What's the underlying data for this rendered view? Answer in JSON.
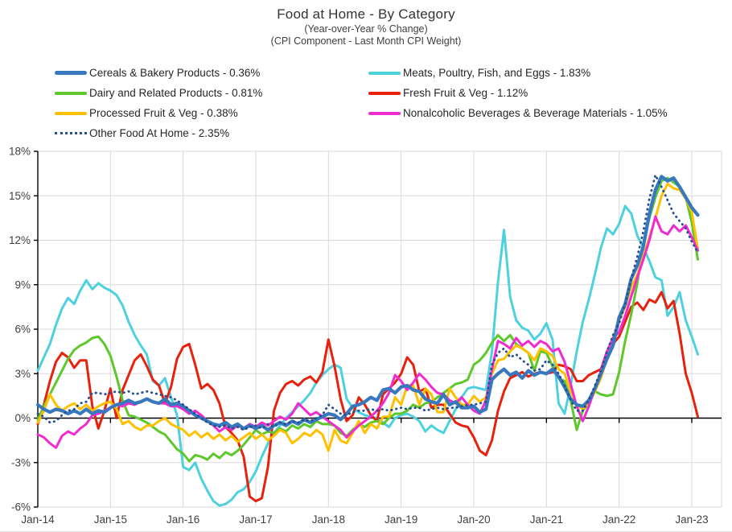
{
  "header": {
    "title": "Food at Home - By Category",
    "subtitle1": "(Year-over-Year % Change)",
    "subtitle2": "(CPI Component - Last Month CPI Weight)"
  },
  "colors": {
    "cereals": "#3778BE",
    "meats": "#4DD1DE",
    "dairy": "#5EC72B",
    "fresh_fruit_veg": "#E8210D",
    "processed_fruit_veg": "#FFC000",
    "nonalcoholic_beverages": "#F02BCF",
    "other_food_at_home": "#264F8F",
    "gridline": "#D9D9D9",
    "axis": "#000000",
    "tick_text": "#404040"
  },
  "legend": {
    "items": [
      {
        "series": "cereals",
        "column": 0,
        "label": "Cereals & Bakery Products - 0.36%"
      },
      {
        "series": "meats",
        "column": 1,
        "label": "Meats, Poultry, Fish, and Eggs - 1.83%"
      },
      {
        "series": "dairy",
        "column": 0,
        "label": "Dairy and Related Products - 0.81%"
      },
      {
        "series": "fresh_fruit_veg",
        "column": 1,
        "label": "Fresh Fruit & Veg - 1.12%"
      },
      {
        "series": "processed_fruit_veg",
        "column": 0,
        "label": "Processed Fruit & Veg - 0.38%"
      },
      {
        "series": "nonalcoholic_beverages",
        "column": 1,
        "label": "Nonalcoholic Beverages & Beverage Materials - 1.05%"
      },
      {
        "series": "other_food_at_home",
        "column": 0,
        "label": "Other Food At Home - 2.35%"
      }
    ]
  },
  "chart_data": {
    "type": "line",
    "title": "Food at Home - By Category",
    "x_start": "Jan-2014",
    "x_frequency": "monthly",
    "n_points": 110,
    "x_tick_labels": [
      "Jan-14",
      "Jan-15",
      "Jan-16",
      "Jan-17",
      "Jan-18",
      "Jan-19",
      "Jan-20",
      "Jan-21",
      "Jan-22",
      "Jan-23"
    ],
    "x_tick_month_index": [
      0,
      12,
      24,
      36,
      48,
      60,
      72,
      84,
      96,
      108
    ],
    "ylim": [
      -6,
      18
    ],
    "y_tick_values": [
      18,
      15,
      12,
      9,
      6,
      3,
      0,
      -3,
      -6
    ],
    "y_tick_labels": [
      "18%",
      "15%",
      "12%",
      "9%",
      "6%",
      "3%",
      "0%",
      "-3%",
      "-6%"
    ],
    "grid": true,
    "legend_position": "top-left",
    "series": [
      {
        "id": "meats",
        "name": "Meats, Poultry, Fish, and Eggs - 1.83%",
        "color": "#4DD1DE",
        "stroke_width": 3,
        "dash": "solid",
        "values": [
          3.2,
          4.1,
          5.0,
          6.3,
          7.4,
          8.1,
          7.7,
          8.6,
          9.3,
          8.7,
          9.1,
          8.8,
          8.6,
          8.3,
          7.6,
          6.5,
          5.6,
          4.9,
          4.3,
          2.5,
          2.2,
          2.7,
          1.4,
          0.2,
          -3.3,
          -3.5,
          -3.0,
          -4.1,
          -4.9,
          -5.6,
          -5.9,
          -5.8,
          -5.5,
          -5.0,
          -4.8,
          -4.3,
          -3.6,
          -2.6,
          -1.7,
          -1.0,
          -0.5,
          0.0,
          0.4,
          0.8,
          1.2,
          1.7,
          2.4,
          2.9,
          3.3,
          3.6,
          3.4,
          1.3,
          0.7,
          0.4,
          0.2,
          0.1,
          0.0,
          -0.3,
          -0.6,
          0.0,
          0.2,
          0.3,
          0.1,
          -0.2,
          -0.9,
          -0.5,
          -0.8,
          -1.0,
          -0.2,
          0.6,
          1.4,
          2.0,
          2.1,
          2.0,
          1.9,
          4.5,
          9.2,
          12.7,
          8.2,
          6.6,
          6.1,
          5.9,
          5.3,
          5.7,
          6.4,
          5.3,
          1.0,
          0.3,
          2.2,
          4.5,
          6.5,
          8.0,
          9.7,
          11.5,
          12.8,
          12.4,
          13.1,
          14.3,
          13.8,
          12.3,
          11.5,
          10.6,
          9.5,
          9.3,
          6.9,
          7.5,
          8.5,
          6.6,
          5.5,
          4.3
        ]
      },
      {
        "id": "fresh_fruit_veg",
        "name": "Fresh Fruit & Veg - 1.12%",
        "color": "#E8210D",
        "stroke_width": 3,
        "dash": "solid",
        "values": [
          -0.4,
          0.9,
          2.5,
          3.8,
          4.4,
          4.1,
          3.4,
          3.9,
          3.9,
          0.8,
          -0.7,
          0.5,
          2.0,
          0.0,
          1.9,
          2.9,
          3.9,
          4.3,
          3.5,
          2.6,
          2.2,
          1.0,
          2.1,
          4.0,
          4.8,
          5.0,
          3.6,
          2.0,
          2.3,
          1.9,
          1.0,
          -0.6,
          -1.0,
          -1.5,
          -2.6,
          -5.3,
          -5.6,
          -5.4,
          -3.3,
          0.5,
          1.7,
          2.3,
          2.5,
          2.2,
          2.6,
          2.8,
          2.4,
          3.1,
          5.3,
          3.5,
          1.3,
          -0.2,
          0.2,
          1.4,
          0.9,
          0.2,
          -0.2,
          1.6,
          2.0,
          2.4,
          3.0,
          4.1,
          3.6,
          1.8,
          2.0,
          0.7,
          0.9,
          0.9,
          0.3,
          -0.3,
          -0.5,
          -0.6,
          -1.3,
          -2.2,
          -2.5,
          -1.5,
          0.5,
          1.8,
          2.7,
          2.9,
          3.1,
          2.8,
          3.0,
          3.1,
          3.0,
          3.1,
          3.6,
          3.5,
          3.3,
          2.5,
          2.5,
          2.9,
          3.1,
          3.3,
          4.5,
          5.0,
          5.5,
          6.5,
          7.5,
          7.8,
          7.3,
          8.0,
          7.8,
          8.5,
          7.4,
          7.9,
          5.7,
          3.0,
          1.7,
          0.1
        ]
      },
      {
        "id": "dairy",
        "name": "Dairy and Related Products - 0.81%",
        "color": "#5EC72B",
        "stroke_width": 3,
        "dash": "solid",
        "values": [
          -0.1,
          0.8,
          1.6,
          2.4,
          3.2,
          4.0,
          4.6,
          4.9,
          5.1,
          5.4,
          5.5,
          5.0,
          4.2,
          2.8,
          1.2,
          0.2,
          0.1,
          -0.1,
          -0.3,
          -0.6,
          -0.9,
          -1.1,
          -1.6,
          -2.1,
          -2.4,
          -2.9,
          -2.5,
          -2.6,
          -2.8,
          -2.4,
          -2.7,
          -2.3,
          -2.5,
          -2.2,
          -1.8,
          -1.3,
          -0.8,
          -1.1,
          -0.9,
          -1.0,
          -0.7,
          -0.9,
          -0.5,
          -0.7,
          -0.4,
          -0.6,
          -0.2,
          -0.4,
          -0.4,
          -0.5,
          -1.0,
          -1.2,
          -0.8,
          -0.4,
          -0.6,
          -0.3,
          -0.2,
          -0.4,
          0.0,
          0.3,
          0.3,
          0.5,
          0.9,
          0.7,
          1.0,
          1.1,
          1.4,
          1.7,
          2.0,
          2.3,
          2.4,
          2.6,
          3.6,
          3.9,
          4.4,
          5.1,
          5.6,
          5.2,
          5.6,
          5.0,
          4.7,
          4.4,
          3.2,
          4.5,
          4.4,
          3.5,
          2.7,
          2.5,
          1.2,
          -0.8,
          0.5,
          1.0,
          1.8,
          1.6,
          1.5,
          1.6,
          3.1,
          5.2,
          7.0,
          9.1,
          11.8,
          13.5,
          14.9,
          16.0,
          16.2,
          15.9,
          15.6,
          14.9,
          13.2,
          10.7
        ]
      },
      {
        "id": "processed_fruit_veg",
        "name": "Processed Fruit & Veg - 0.38%",
        "color": "#FFC000",
        "stroke_width": 3,
        "dash": "solid",
        "values": [
          -0.3,
          0.5,
          1.6,
          0.9,
          0.5,
          0.8,
          1.0,
          0.6,
          0.9,
          0.5,
          0.8,
          1.0,
          1.1,
          0.6,
          -0.4,
          -0.2,
          -0.6,
          -0.8,
          -0.5,
          -0.5,
          -0.2,
          0.0,
          -0.4,
          -0.6,
          -0.8,
          -1.2,
          -0.9,
          -1.3,
          -1.0,
          -1.4,
          -1.1,
          -1.5,
          -1.2,
          -1.6,
          -1.3,
          -1.0,
          -1.4,
          -1.1,
          -1.5,
          -1.2,
          -0.8,
          -1.0,
          -1.7,
          -1.4,
          -1.0,
          -1.2,
          -0.8,
          -1.1,
          -2.2,
          -0.8,
          -1.5,
          -1.7,
          -1.0,
          -0.2,
          -1.0,
          -0.4,
          -0.7,
          0.1,
          0.1,
          1.4,
          0.9,
          2.2,
          2.2,
          0.9,
          2.0,
          1.6,
          0.4,
          0.4,
          2.0,
          1.4,
          0.9,
          0.9,
          1.5,
          1.1,
          1.4,
          3.0,
          3.9,
          4.0,
          4.5,
          4.9,
          4.7,
          4.4,
          3.9,
          4.7,
          4.5,
          4.2,
          3.3,
          3.0,
          1.8,
          0.9,
          0.6,
          1.0,
          1.8,
          2.7,
          4.1,
          5.4,
          6.6,
          7.5,
          8.8,
          9.7,
          10.9,
          12.2,
          13.5,
          15.0,
          15.8,
          15.5,
          15.4,
          14.8,
          13.9,
          11.4
        ]
      },
      {
        "id": "nonalcoholic_beverages",
        "name": "Nonalcoholic Beverages & Beverage Materials - 1.05%",
        "color": "#F02BCF",
        "stroke_width": 3,
        "dash": "solid",
        "values": [
          -1.1,
          -1.3,
          -1.7,
          -2.0,
          -1.2,
          -0.9,
          -1.1,
          -0.7,
          -0.4,
          0.2,
          0.3,
          0.5,
          0.7,
          0.9,
          0.8,
          1.0,
          0.9,
          1.1,
          1.3,
          1.1,
          1.0,
          1.0,
          0.8,
          0.8,
          0.6,
          0.3,
          0.5,
          0.2,
          -0.2,
          -0.5,
          -0.9,
          -0.6,
          -0.8,
          -0.5,
          -0.7,
          -0.4,
          -0.6,
          -0.3,
          -0.5,
          -0.2,
          0.1,
          -0.1,
          0.3,
          1.0,
          0.6,
          0.2,
          0.4,
          0.1,
          -0.2,
          -0.5,
          -0.8,
          -1.3,
          -0.9,
          -0.5,
          -0.2,
          0.1,
          0.5,
          1.0,
          1.7,
          2.9,
          2.5,
          1.9,
          2.4,
          3.0,
          2.6,
          2.1,
          1.7,
          1.6,
          1.2,
          1.0,
          1.4,
          0.9,
          0.5,
          0.3,
          1.2,
          3.3,
          5.2,
          5.0,
          4.7,
          5.4,
          4.9,
          5.2,
          4.8,
          5.2,
          5.0,
          4.5,
          4.7,
          3.8,
          2.3,
          0.8,
          -0.2,
          0.8,
          2.0,
          3.2,
          4.5,
          5.4,
          5.8,
          6.9,
          8.2,
          9.5,
          10.7,
          12.0,
          13.6,
          12.6,
          12.4,
          13.0,
          12.6,
          13.0,
          12.2,
          11.3
        ]
      },
      {
        "id": "cereals",
        "name": "Cereals & Bakery Products - 0.36%",
        "color": "#3778BE",
        "stroke_width": 4.2,
        "dash": "solid",
        "values": [
          0.9,
          0.6,
          0.4,
          0.6,
          0.5,
          0.3,
          0.5,
          0.3,
          0.6,
          0.3,
          0.5,
          0.4,
          0.7,
          0.9,
          1.0,
          1.2,
          1.0,
          1.1,
          1.3,
          1.1,
          1.0,
          1.3,
          0.9,
          1.0,
          0.8,
          0.5,
          0.2,
          0.0,
          -0.2,
          -0.4,
          -0.5,
          -0.3,
          -0.6,
          -0.4,
          -0.7,
          -0.5,
          -0.7,
          -0.5,
          -0.8,
          -0.5,
          -0.3,
          -0.5,
          -0.2,
          -0.4,
          -0.1,
          -0.3,
          -0.1,
          0.1,
          0.3,
          0.2,
          -0.1,
          0.3,
          0.8,
          0.9,
          1.1,
          1.4,
          1.2,
          1.9,
          2.0,
          1.7,
          2.1,
          2.2,
          1.9,
          1.8,
          1.3,
          1.1,
          1.0,
          1.6,
          0.9,
          1.1,
          0.7,
          0.7,
          0.8,
          0.4,
          0.6,
          2.6,
          3.0,
          3.3,
          2.9,
          3.1,
          2.7,
          3.2,
          2.9,
          3.1,
          3.0,
          3.3,
          2.8,
          2.1,
          1.3,
          0.9,
          0.8,
          1.2,
          2.0,
          3.0,
          4.0,
          4.9,
          6.8,
          7.7,
          9.4,
          10.3,
          11.6,
          13.8,
          15.4,
          16.3,
          16.0,
          16.2,
          15.6,
          14.9,
          14.2,
          13.7
        ]
      },
      {
        "id": "other_food_at_home",
        "name": "Other Food At Home - 2.35%",
        "color": "#264F8F",
        "stroke_width": 2.8,
        "dash": "dotted",
        "values": [
          0.3,
          0.1,
          -0.3,
          -0.2,
          0.2,
          0.5,
          0.6,
          1.0,
          1.1,
          1.7,
          1.7,
          1.6,
          1.7,
          1.8,
          1.7,
          1.8,
          1.6,
          1.7,
          1.8,
          1.7,
          1.6,
          1.5,
          1.4,
          1.2,
          0.9,
          0.6,
          0.3,
          0.0,
          -0.3,
          -0.5,
          -0.6,
          -0.5,
          -0.7,
          -0.6,
          -0.8,
          -0.6,
          -0.5,
          -0.7,
          -0.4,
          -0.6,
          -0.3,
          -0.4,
          -0.2,
          -0.3,
          -0.1,
          -0.2,
          0.0,
          0.2,
          0.9,
          0.6,
          0.3,
          0.2,
          0.4,
          0.5,
          0.5,
          0.6,
          0.5,
          0.6,
          0.5,
          0.6,
          0.7,
          0.6,
          0.7,
          0.7,
          0.5,
          0.6,
          0.7,
          0.6,
          0.7,
          0.7,
          0.8,
          0.9,
          0.9,
          1.0,
          1.1,
          3.6,
          4.4,
          4.7,
          4.1,
          4.3,
          3.9,
          3.6,
          3.2,
          3.3,
          3.9,
          3.6,
          3.0,
          2.2,
          1.2,
          0.5,
          0.5,
          1.2,
          2.2,
          3.2,
          4.5,
          5.6,
          6.4,
          7.7,
          9.4,
          10.9,
          12.6,
          14.8,
          16.4,
          15.6,
          14.7,
          13.8,
          13.3,
          12.8,
          11.9,
          11.2
        ]
      }
    ]
  }
}
